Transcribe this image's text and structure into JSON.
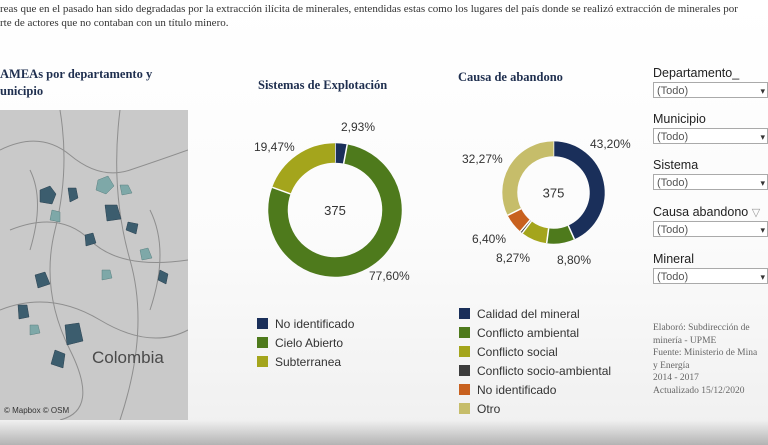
{
  "intro": {
    "line1": "reas que en el pasado han sido degradadas por la extracción ilícita de minerales, entendidas estas como los lugares del país donde se realizó extracción de minerales por",
    "line2": "rte de actores que no contaban con un título minero."
  },
  "map": {
    "title_line1": "AMEAs por departamento y",
    "title_line2": "unicipio",
    "country_label": "Colombia",
    "credit": "© Mapbox © OSM"
  },
  "chart_data": [
    {
      "type": "pie",
      "title": "Sistemas de Explotación",
      "center_value": "375",
      "categories": [
        "No identificado",
        "Cielo Abierto",
        "Subterranea"
      ],
      "values": [
        2.93,
        77.6,
        19.47
      ],
      "value_labels": [
        "2,93%",
        "77,60%",
        "19,47%"
      ],
      "colors": [
        "#1a2f5a",
        "#4e7a1c",
        "#a4a51c"
      ],
      "legend_position": "bottom-left"
    },
    {
      "type": "pie",
      "title": "Causa de abandono",
      "center_value": "375",
      "categories": [
        "Calidad del mineral",
        "Conflicto ambiental",
        "Conflicto social",
        "Conflicto socio-ambiental",
        "No identificado",
        "Otro"
      ],
      "values": [
        43.2,
        8.8,
        8.27,
        0.8,
        6.4,
        32.27
      ],
      "value_labels": [
        "43,20%",
        "8,80%",
        "8,27%",
        "",
        "6,40%",
        "32,27%"
      ],
      "colors": [
        "#1a2f5a",
        "#4e7a1c",
        "#a4a51c",
        "#3c3c3c",
        "#c8611f",
        "#c6bd6a"
      ],
      "legend_position": "bottom-left"
    }
  ],
  "filters": [
    {
      "label": "Departamento_",
      "value": "(Todo)",
      "has_filter_icon": false
    },
    {
      "label": "Municipio",
      "value": "(Todo)",
      "has_filter_icon": false
    },
    {
      "label": "Sistema",
      "value": "(Todo)",
      "has_filter_icon": false
    },
    {
      "label": "Causa abandono",
      "value": "(Todo)",
      "has_filter_icon": true
    },
    {
      "label": "Mineral",
      "value": "(Todo)",
      "has_filter_icon": false
    }
  ],
  "credits": {
    "line1": "Elaboró: Subdirección de",
    "line2": "minería - UPME",
    "line3": "Fuente: Ministerio de Mina",
    "line4": "y Energía",
    "line5": "2014 - 2017",
    "line6": "Actualizado 15/12/2020"
  }
}
